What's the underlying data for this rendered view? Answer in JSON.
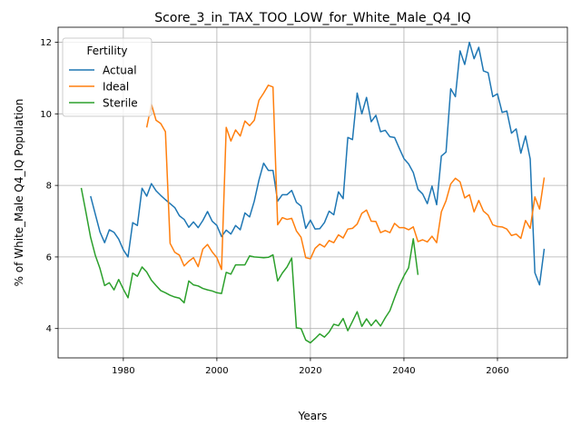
{
  "chart_data": {
    "type": "line",
    "title": "Score_3_in_TAX_TOO_LOW_for_White_Male_Q4_IQ",
    "xlabel": "Years",
    "ylabel": "% of White_Male Q4_IQ Population",
    "xlim": [
      1966.05,
      2074.95
    ],
    "ylim": [
      3.18,
      12.42
    ],
    "xticks": [
      1980,
      2000,
      2020,
      2040,
      2060
    ],
    "yticks": [
      4,
      6,
      8,
      10,
      12
    ],
    "grid": true,
    "legend": {
      "title": "Fertility",
      "position": "top-left"
    },
    "series": [
      {
        "name": "Actual",
        "color": "#1f77b4",
        "x": [
          1973,
          1974,
          1975,
          1976,
          1977,
          1978,
          1979,
          1980,
          1981,
          1982,
          1983,
          1984,
          1985,
          1986,
          1987,
          1988,
          1989,
          1990,
          1991,
          1992,
          1993,
          1994,
          1995,
          1996,
          1997,
          1998,
          1999,
          2000,
          2001,
          2002,
          2003,
          2004,
          2005,
          2006,
          2007,
          2008,
          2009,
          2010,
          2011,
          2012,
          2013,
          2014,
          2015,
          2016,
          2017,
          2018,
          2019,
          2020,
          2021,
          2022,
          2023,
          2024,
          2025,
          2026,
          2027,
          2028,
          2029,
          2030,
          2031,
          2032,
          2033,
          2034,
          2035,
          2036,
          2037,
          2038,
          2039,
          2040,
          2041,
          2042,
          2043,
          2044,
          2045,
          2046,
          2047,
          2048,
          2049,
          2050,
          2051,
          2052,
          2053,
          2054,
          2055,
          2056,
          2057,
          2058,
          2059,
          2060,
          2061,
          2062,
          2063,
          2064,
          2065,
          2066,
          2067,
          2068,
          2069,
          2070
        ],
        "values": [
          7.7,
          7.2,
          6.7,
          6.4,
          6.76,
          6.69,
          6.5,
          6.2,
          6.0,
          6.96,
          6.88,
          7.92,
          7.7,
          8.05,
          7.85,
          7.72,
          7.6,
          7.49,
          7.38,
          7.15,
          7.05,
          6.83,
          6.98,
          6.82,
          7.02,
          7.27,
          7.0,
          6.88,
          6.57,
          6.75,
          6.64,
          6.88,
          6.76,
          7.23,
          7.12,
          7.56,
          8.15,
          8.62,
          8.42,
          8.42,
          7.56,
          7.74,
          7.74,
          7.86,
          7.53,
          7.42,
          6.8,
          7.03,
          6.78,
          6.79,
          6.96,
          7.28,
          7.18,
          7.82,
          7.63,
          9.34,
          9.28,
          10.58,
          10.0,
          10.46,
          9.78,
          9.96,
          9.5,
          9.54,
          9.36,
          9.34,
          9.04,
          8.75,
          8.6,
          8.36,
          7.89,
          7.76,
          7.49,
          7.98,
          7.46,
          8.82,
          8.93,
          10.7,
          10.48,
          11.76,
          11.38,
          12.0,
          11.54,
          11.86,
          11.2,
          11.15,
          10.48,
          10.56,
          10.04,
          10.08,
          9.46,
          9.58,
          8.9,
          9.38,
          8.74,
          5.56,
          5.22,
          6.23
        ]
      },
      {
        "name": "Ideal",
        "color": "#ff7f0e",
        "x": [
          1985,
          1986,
          1987,
          1988,
          1989,
          1990,
          1991,
          1992,
          1993,
          1994,
          1995,
          1996,
          1997,
          1998,
          1999,
          2000,
          2001,
          2002,
          2003,
          2004,
          2005,
          2006,
          2007,
          2008,
          2009,
          2010,
          2011,
          2012,
          2013,
          2014,
          2015,
          2016,
          2017,
          2018,
          2019,
          2020,
          2021,
          2022,
          2023,
          2024,
          2025,
          2026,
          2027,
          2028,
          2029,
          2030,
          2031,
          2032,
          2033,
          2034,
          2035,
          2036,
          2037,
          2038,
          2039,
          2040,
          2041,
          2042,
          2043,
          2044,
          2045,
          2046,
          2047,
          2048,
          2049,
          2050,
          2051,
          2052,
          2053,
          2054,
          2055,
          2056,
          2057,
          2058,
          2059,
          2060,
          2061,
          2062,
          2063,
          2064,
          2065,
          2066,
          2067,
          2068,
          2069,
          2070
        ],
        "values": [
          9.62,
          10.27,
          9.82,
          9.73,
          9.5,
          6.38,
          6.13,
          6.05,
          5.75,
          5.88,
          5.98,
          5.73,
          6.22,
          6.35,
          6.14,
          5.98,
          5.65,
          9.62,
          9.24,
          9.55,
          9.38,
          9.8,
          9.67,
          9.82,
          10.38,
          10.58,
          10.8,
          10.75,
          6.9,
          7.1,
          7.05,
          7.08,
          6.73,
          6.55,
          5.98,
          5.95,
          6.24,
          6.36,
          6.28,
          6.46,
          6.4,
          6.62,
          6.53,
          6.78,
          6.8,
          6.92,
          7.22,
          7.31,
          7.0,
          6.99,
          6.68,
          6.74,
          6.68,
          6.94,
          6.82,
          6.82,
          6.76,
          6.84,
          6.43,
          6.48,
          6.42,
          6.58,
          6.4,
          7.26,
          7.57,
          8.04,
          8.2,
          8.1,
          7.65,
          7.74,
          7.26,
          7.58,
          7.28,
          7.17,
          6.9,
          6.85,
          6.84,
          6.78,
          6.6,
          6.64,
          6.52,
          7.02,
          6.8,
          7.68,
          7.34,
          8.22
        ]
      },
      {
        "name": "Sterile",
        "color": "#2ca02c",
        "x": [
          1971,
          1972,
          1973,
          1974,
          1975,
          1976,
          1977,
          1978,
          1979,
          1980,
          1981,
          1982,
          1983,
          1984,
          1985,
          1986,
          1987,
          1988,
          1989,
          1990,
          1991,
          1992,
          1993,
          1994,
          1995,
          1996,
          1997,
          1998,
          1999,
          2000,
          2001,
          2002,
          2003,
          2004,
          2005,
          2006,
          2007,
          2008,
          2009,
          2010,
          2011,
          2012,
          2013,
          2014,
          2015,
          2016,
          2017,
          2018,
          2019,
          2020,
          2021,
          2022,
          2023,
          2024,
          2025,
          2026,
          2027,
          2028,
          2029,
          2030,
          2031,
          2032,
          2033,
          2034,
          2035,
          2036,
          2037,
          2038,
          2039,
          2040,
          2041,
          2042,
          2043
        ],
        "values": [
          7.93,
          7.25,
          6.55,
          6.05,
          5.68,
          5.2,
          5.28,
          5.08,
          5.37,
          5.1,
          4.86,
          5.55,
          5.46,
          5.72,
          5.58,
          5.35,
          5.2,
          5.06,
          5.0,
          4.93,
          4.88,
          4.85,
          4.72,
          5.33,
          5.22,
          5.19,
          5.12,
          5.08,
          5.05,
          5.0,
          4.98,
          5.57,
          5.52,
          5.78,
          5.78,
          5.78,
          6.03,
          6.0,
          5.99,
          5.98,
          5.99,
          6.06,
          5.33,
          5.55,
          5.72,
          5.97,
          4.02,
          4.0,
          3.68,
          3.6,
          3.72,
          3.85,
          3.76,
          3.9,
          4.12,
          4.08,
          4.28,
          3.94,
          4.2,
          4.47,
          4.06,
          4.27,
          4.08,
          4.24,
          4.07,
          4.3,
          4.5,
          4.86,
          5.2,
          5.47,
          5.7,
          6.51,
          5.5
        ]
      }
    ]
  }
}
